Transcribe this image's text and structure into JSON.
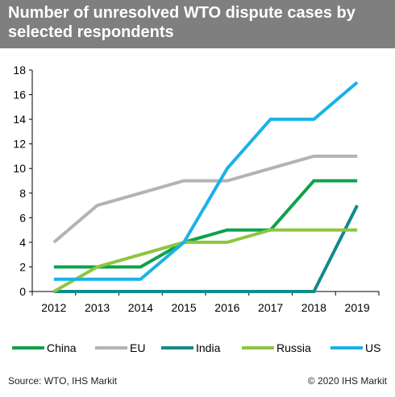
{
  "title": "Number of unresolved WTO dispute cases by selected respondents",
  "footer": {
    "source": "Source: WTO, IHS Markit",
    "copyright": "© 2020 IHS Markit"
  },
  "chart_data": {
    "type": "line",
    "x": [
      "2012",
      "2013",
      "2014",
      "2015",
      "2016",
      "2017",
      "2018",
      "2019"
    ],
    "ylim": [
      0,
      18
    ],
    "yticks": [
      0,
      2,
      4,
      6,
      8,
      10,
      12,
      14,
      16,
      18
    ],
    "grid": false,
    "legend_position": "bottom",
    "series": [
      {
        "name": "China",
        "color": "#0fa14a",
        "values": [
          2,
          2,
          2,
          4,
          5,
          5,
          9,
          9
        ]
      },
      {
        "name": "EU",
        "color": "#b3b3b3",
        "values": [
          4,
          7,
          8,
          9,
          9,
          10,
          11,
          11
        ]
      },
      {
        "name": "India",
        "color": "#138a8a",
        "values": [
          0,
          0,
          0,
          0,
          0,
          0,
          0,
          7
        ]
      },
      {
        "name": "Russia",
        "color": "#8dc63f",
        "values": [
          0,
          2,
          3,
          4,
          4,
          5,
          5,
          5
        ]
      },
      {
        "name": "US",
        "color": "#1ab2e8",
        "values": [
          1,
          1,
          1,
          4,
          10,
          14,
          14,
          17
        ]
      }
    ]
  }
}
